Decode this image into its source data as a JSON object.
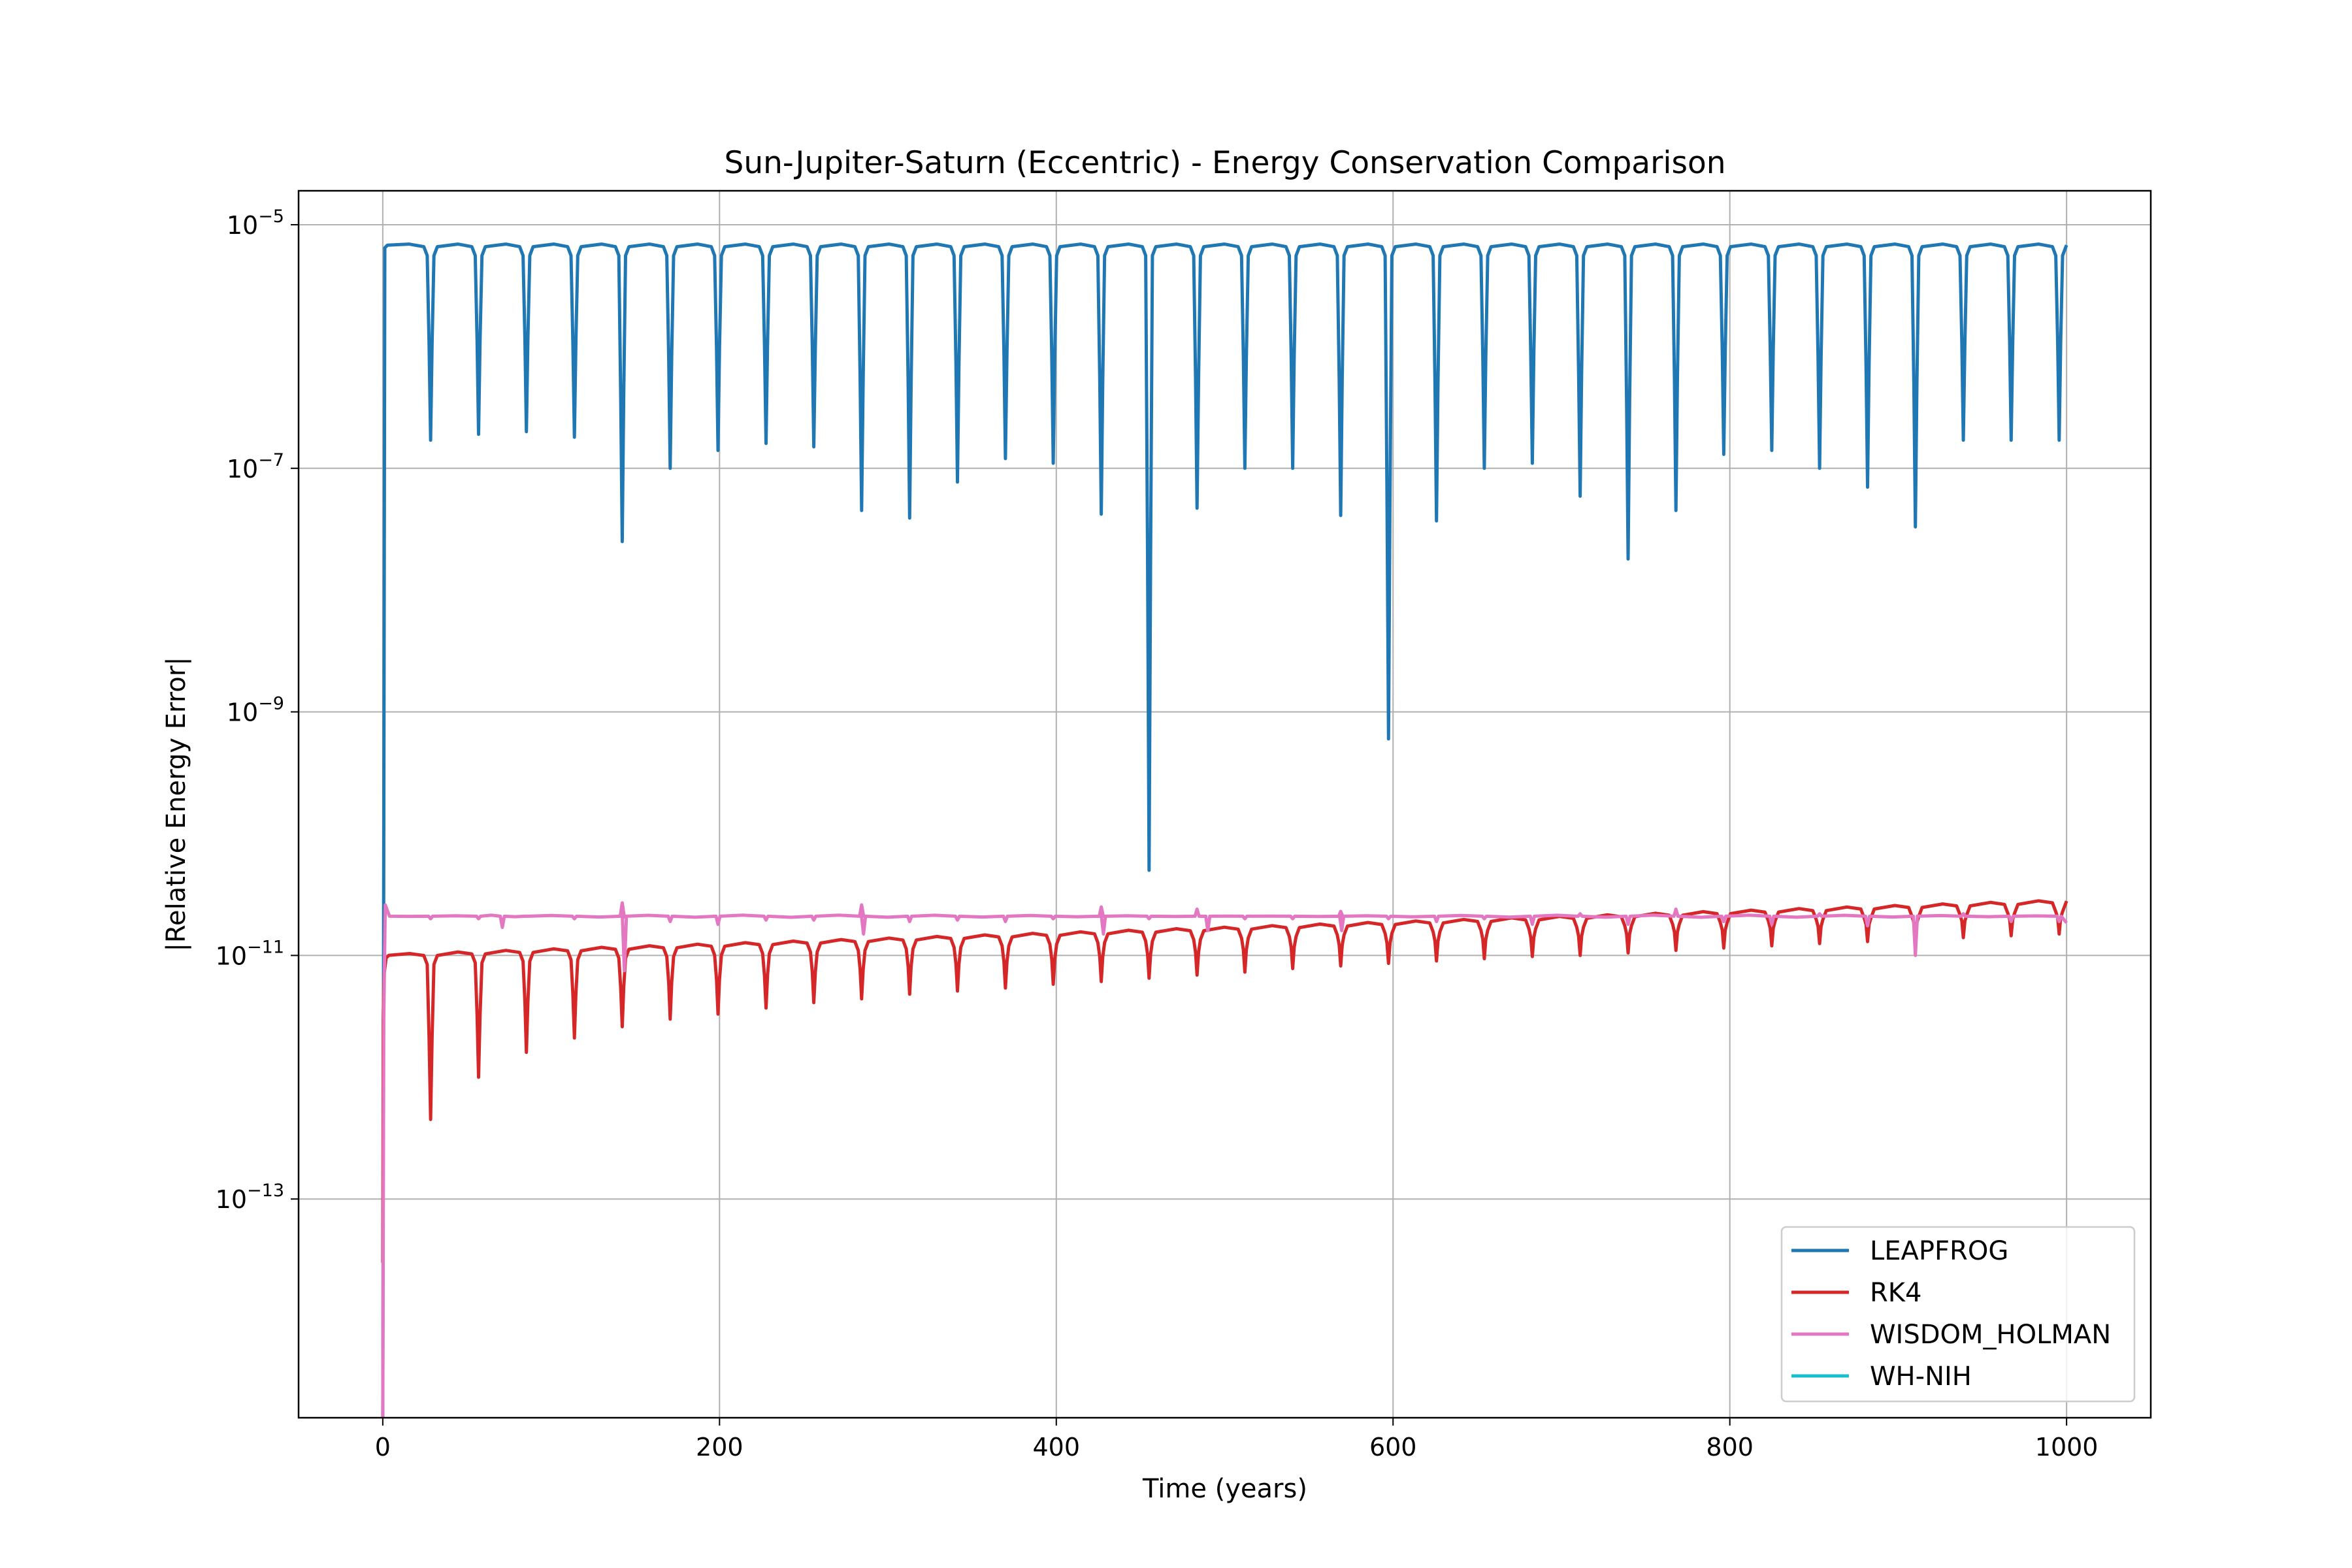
{
  "chart_data": {
    "type": "line",
    "title": "Sun-Jupiter-Saturn (Eccentric) - Energy Conservation Comparison",
    "xlabel": "Time (years)",
    "ylabel": "|Relative Energy Error|",
    "xlim": [
      -50,
      1050
    ],
    "ylim": [
      1.6e-15,
      1.9e-05
    ],
    "yscale": "log",
    "grid": true,
    "legend_position": "lower-right",
    "x_ticks": [
      {
        "value": 0,
        "label": "0"
      },
      {
        "value": 200,
        "label": "200"
      },
      {
        "value": 400,
        "label": "400"
      },
      {
        "value": 600,
        "label": "600"
      },
      {
        "value": 800,
        "label": "800"
      },
      {
        "value": 1000,
        "label": "1000"
      }
    ],
    "y_ticks": [
      {
        "value": 1e-05,
        "base": "10",
        "exp": "−5"
      },
      {
        "value": 1e-07,
        "base": "10",
        "exp": "−7"
      },
      {
        "value": 1e-09,
        "base": "10",
        "exp": "−9"
      },
      {
        "value": 1e-11,
        "base": "10",
        "exp": "−11"
      },
      {
        "value": 1e-13,
        "base": "10",
        "exp": "−13"
      }
    ],
    "series": [
      {
        "name": "LEAPFROG",
        "color": "#1f77b4",
        "start": {
          "x": 0,
          "y": 1.6e-15
        },
        "plateau": 6.8e-06,
        "dips": [
          {
            "x": 28.4,
            "y": 1.7e-07
          },
          {
            "x": 56.9,
            "y": 1.9e-07
          },
          {
            "x": 85.3,
            "y": 2e-07
          },
          {
            "x": 113.8,
            "y": 1.8e-07
          },
          {
            "x": 142.2,
            "y": 2.5e-08
          },
          {
            "x": 170.7,
            "y": 1e-07
          },
          {
            "x": 199.1,
            "y": 1.4e-07
          },
          {
            "x": 227.6,
            "y": 1.6e-07
          },
          {
            "x": 256.0,
            "y": 1.5e-07
          },
          {
            "x": 284.4,
            "y": 4.5e-08
          },
          {
            "x": 312.9,
            "y": 3.9e-08
          },
          {
            "x": 341.3,
            "y": 7.7e-08
          },
          {
            "x": 369.8,
            "y": 1.2e-07
          },
          {
            "x": 398.2,
            "y": 1.1e-07
          },
          {
            "x": 426.7,
            "y": 4.2e-08
          },
          {
            "x": 455.1,
            "y": 5e-11
          },
          {
            "x": 483.6,
            "y": 4.7e-08
          },
          {
            "x": 512.0,
            "y": 1e-07
          },
          {
            "x": 540.4,
            "y": 1e-07
          },
          {
            "x": 568.9,
            "y": 4.1e-08
          },
          {
            "x": 597.3,
            "y": 6e-10
          },
          {
            "x": 625.8,
            "y": 3.7e-08
          },
          {
            "x": 654.2,
            "y": 1e-07
          },
          {
            "x": 682.7,
            "y": 1.1e-07
          },
          {
            "x": 711.1,
            "y": 5.9e-08
          },
          {
            "x": 739.6,
            "y": 1.8e-08
          },
          {
            "x": 768.0,
            "y": 4.5e-08
          },
          {
            "x": 796.4,
            "y": 1.3e-07
          },
          {
            "x": 824.9,
            "y": 1.4e-07
          },
          {
            "x": 853.3,
            "y": 1e-07
          },
          {
            "x": 881.8,
            "y": 7e-08
          },
          {
            "x": 910.2,
            "y": 3.3e-08
          },
          {
            "x": 938.7,
            "y": 1.7e-07
          },
          {
            "x": 967.1,
            "y": 1.7e-07
          },
          {
            "x": 995.6,
            "y": 1.7e-07
          }
        ]
      },
      {
        "name": "RK4",
        "color": "#d62728",
        "start": {
          "x": 0,
          "y": 3e-14
        },
        "plateau_start": 1e-11,
        "plateau_end": 2.8e-11,
        "dips": [
          {
            "x": 28.4,
            "y": 4.5e-13
          },
          {
            "x": 56.9,
            "y": 1e-12
          },
          {
            "x": 85.3,
            "y": 1.6e-12
          },
          {
            "x": 113.8,
            "y": 2.1e-12
          },
          {
            "x": 142.2,
            "y": 2.6e-12
          },
          {
            "x": 170.7,
            "y": 3e-12
          },
          {
            "x": 199.1,
            "y": 3.3e-12
          },
          {
            "x": 227.6,
            "y": 3.7e-12
          },
          {
            "x": 256.0,
            "y": 4.1e-12
          },
          {
            "x": 284.4,
            "y": 4.4e-12
          },
          {
            "x": 312.9,
            "y": 4.8e-12
          },
          {
            "x": 341.3,
            "y": 5.1e-12
          },
          {
            "x": 369.8,
            "y": 5.4e-12
          },
          {
            "x": 398.2,
            "y": 5.8e-12
          },
          {
            "x": 426.7,
            "y": 6.1e-12
          },
          {
            "x": 455.1,
            "y": 6.5e-12
          },
          {
            "x": 483.6,
            "y": 6.9e-12
          },
          {
            "x": 512.0,
            "y": 7.3e-12
          },
          {
            "x": 540.4,
            "y": 7.8e-12
          },
          {
            "x": 568.9,
            "y": 8.2e-12
          },
          {
            "x": 597.3,
            "y": 8.6e-12
          },
          {
            "x": 625.8,
            "y": 9e-12
          },
          {
            "x": 654.2,
            "y": 9.4e-12
          },
          {
            "x": 682.7,
            "y": 9.8e-12
          },
          {
            "x": 711.1,
            "y": 1e-11
          },
          {
            "x": 739.6,
            "y": 1.05e-11
          },
          {
            "x": 768.0,
            "y": 1.1e-11
          },
          {
            "x": 796.4,
            "y": 1.15e-11
          },
          {
            "x": 824.9,
            "y": 1.2e-11
          },
          {
            "x": 853.3,
            "y": 1.25e-11
          },
          {
            "x": 881.8,
            "y": 1.3e-11
          },
          {
            "x": 910.2,
            "y": 1.35e-11
          },
          {
            "x": 938.7,
            "y": 1.4e-11
          },
          {
            "x": 967.1,
            "y": 1.45e-11
          },
          {
            "x": 995.6,
            "y": 1.5e-11
          }
        ]
      },
      {
        "name": "WISDOM_HOLMAN",
        "color": "#e377c2",
        "start": {
          "x": 0,
          "y": 1.6e-15
        },
        "peak": {
          "x": 1.5,
          "y": 2.6e-11
        },
        "plateau": 2.1e-11,
        "features": [
          {
            "x": 28.4,
            "y": 2e-11
          },
          {
            "x": 56.9,
            "y": 2e-11
          },
          {
            "x": 71.0,
            "y": 1.7e-11
          },
          {
            "x": 85.3,
            "y": 2.1e-11
          },
          {
            "x": 113.8,
            "y": 2e-11
          },
          {
            "x": 142.2,
            "y": 2.7e-11
          },
          {
            "x": 143.5,
            "y": 7.5e-12
          },
          {
            "x": 170.7,
            "y": 1.9e-11
          },
          {
            "x": 199.1,
            "y": 1.8e-11
          },
          {
            "x": 227.6,
            "y": 1.95e-11
          },
          {
            "x": 256.0,
            "y": 1.95e-11
          },
          {
            "x": 284.4,
            "y": 2.6e-11
          },
          {
            "x": 285.5,
            "y": 1.5e-11
          },
          {
            "x": 312.9,
            "y": 1.9e-11
          },
          {
            "x": 341.3,
            "y": 1.95e-11
          },
          {
            "x": 369.8,
            "y": 1.9e-11
          },
          {
            "x": 398.2,
            "y": 2e-11
          },
          {
            "x": 426.7,
            "y": 2.5e-11
          },
          {
            "x": 428.0,
            "y": 1.5e-11
          },
          {
            "x": 455.1,
            "y": 2e-11
          },
          {
            "x": 483.6,
            "y": 2.4e-11
          },
          {
            "x": 490.0,
            "y": 1.6e-11
          },
          {
            "x": 512.0,
            "y": 2e-11
          },
          {
            "x": 540.4,
            "y": 2e-11
          },
          {
            "x": 568.9,
            "y": 2.3e-11
          },
          {
            "x": 569.5,
            "y": 1.6e-11
          },
          {
            "x": 597.3,
            "y": 2e-11
          },
          {
            "x": 625.8,
            "y": 1.9e-11
          },
          {
            "x": 654.2,
            "y": 2e-11
          },
          {
            "x": 682.7,
            "y": 1.8e-11
          },
          {
            "x": 711.1,
            "y": 2.2e-11
          },
          {
            "x": 739.6,
            "y": 1.8e-11
          },
          {
            "x": 768.0,
            "y": 2.4e-11
          },
          {
            "x": 796.4,
            "y": 1.9e-11
          },
          {
            "x": 824.9,
            "y": 1.8e-11
          },
          {
            "x": 853.3,
            "y": 2.2e-11
          },
          {
            "x": 881.8,
            "y": 1.75e-11
          },
          {
            "x": 910.2,
            "y": 1e-11
          },
          {
            "x": 938.7,
            "y": 2.2e-11
          },
          {
            "x": 967.1,
            "y": 1.9e-11
          },
          {
            "x": 995.6,
            "y": 1.9e-11
          }
        ],
        "end": {
          "x": 1000,
          "y": 1.85e-11
        }
      },
      {
        "name": "WH-NIH",
        "color": "#17becf",
        "values": []
      }
    ]
  }
}
